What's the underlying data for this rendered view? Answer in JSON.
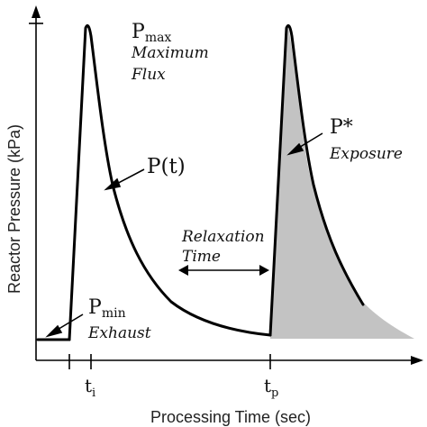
{
  "axes": {
    "y_label": "Reactor Pressure  (kPa)",
    "x_label": "Processing Time (sec)"
  },
  "ticks": {
    "ti_base": "t",
    "ti_sub": "i",
    "tp_base": "t",
    "tp_sub": "p"
  },
  "labels": {
    "pmax_base": "P",
    "pmax_sub": "max",
    "pmax_line1": "Maximum",
    "pmax_line2": "Flux",
    "pt": "P(t)",
    "pstar": "P*",
    "exposure": "Exposure",
    "relax_line1": "Relaxation",
    "relax_line2": "Time",
    "pmin_base": "P",
    "pmin_sub": "min",
    "exhaust": "Exhaust"
  },
  "colors": {
    "curve": "#000000",
    "shade": "#c3c3c3",
    "axis": "#000000"
  }
}
